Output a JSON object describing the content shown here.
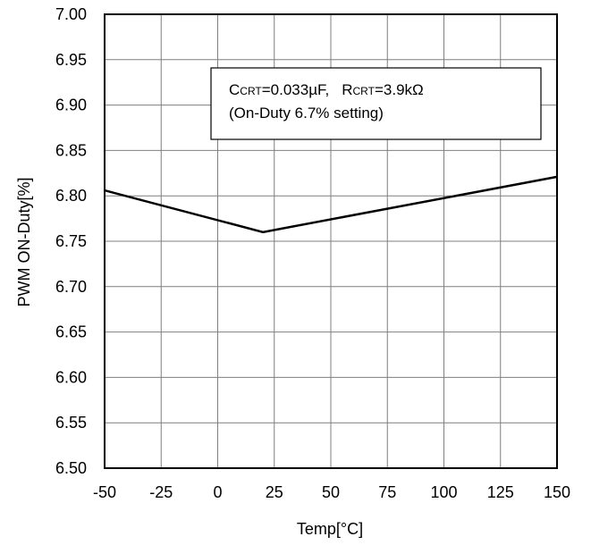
{
  "chart_data": {
    "type": "line",
    "title": "",
    "xlabel": "Temp[°C]",
    "ylabel": "PWM ON-Duty[%]",
    "xlim": [
      -50,
      150
    ],
    "ylim": [
      6.5,
      7.0
    ],
    "x_ticks": [
      "-50",
      "-25",
      "0",
      "25",
      "50",
      "75",
      "100",
      "125",
      "150"
    ],
    "y_ticks": [
      "7.00",
      "6.95",
      "6.90",
      "6.85",
      "6.80",
      "6.75",
      "6.70",
      "6.65",
      "6.60",
      "6.55",
      "6.50"
    ],
    "grid": true,
    "series": [
      {
        "x": [
          -50,
          20,
          150
        ],
        "y": [
          6.806,
          6.76,
          6.821
        ],
        "color": "#000000"
      }
    ],
    "annotation": {
      "c_prefix": "C",
      "c_sub": "CRT",
      "c_value": "=0.033µF,",
      "r_prefix": "R",
      "r_sub": "CRT",
      "r_value": "=3.9kΩ",
      "line2": "(On-Duty 6.7% setting)"
    }
  }
}
